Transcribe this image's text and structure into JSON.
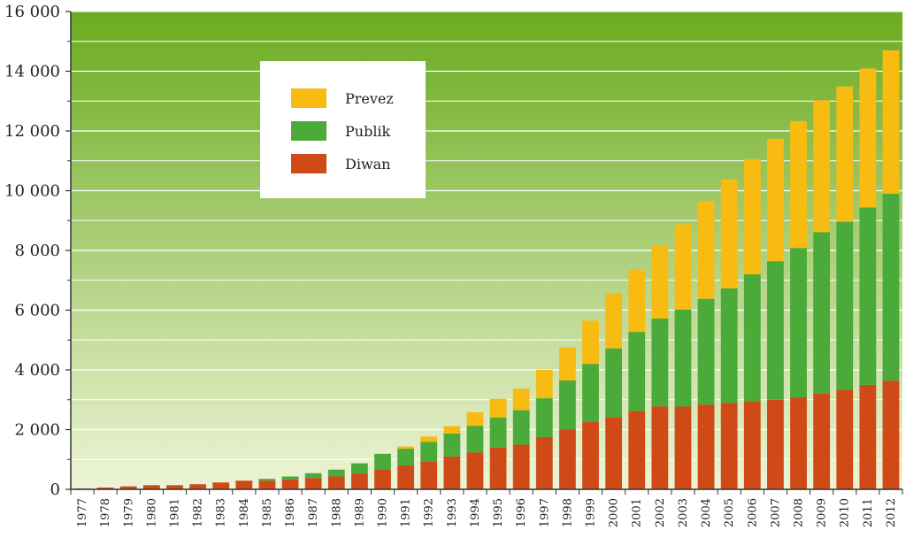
{
  "chart_data": {
    "type": "bar",
    "stacked": true,
    "categories": [
      "1977",
      "1978",
      "1979",
      "1980",
      "1981",
      "1982",
      "1983",
      "1984",
      "1985",
      "1986",
      "1987",
      "1988",
      "1989",
      "1990",
      "1991",
      "1992",
      "1993",
      "1994",
      "1995",
      "1996",
      "1997",
      "1998",
      "1999",
      "2000",
      "2001",
      "2002",
      "2003",
      "2004",
      "2005",
      "2006",
      "2007",
      "2008",
      "2009",
      "2010",
      "2011",
      "2012"
    ],
    "series": [
      {
        "name": "Diwan",
        "color": "#d04a18",
        "values": [
          30,
          60,
          100,
          140,
          140,
          170,
          230,
          290,
          290,
          330,
          380,
          430,
          530,
          670,
          800,
          940,
          1100,
          1230,
          1400,
          1500,
          1750,
          2000,
          2250,
          2420,
          2620,
          2780,
          2770,
          2840,
          2890,
          2950,
          3000,
          3080,
          3210,
          3340,
          3500,
          3640
        ]
      },
      {
        "name": "Publik",
        "color": "#4aaa3a",
        "values": [
          0,
          0,
          0,
          0,
          0,
          0,
          0,
          0,
          60,
          100,
          160,
          230,
          340,
          520,
          560,
          650,
          770,
          900,
          1000,
          1150,
          1300,
          1650,
          1950,
          2300,
          2650,
          2940,
          3250,
          3540,
          3840,
          4250,
          4640,
          5000,
          5400,
          5620,
          5940,
          6260
        ]
      },
      {
        "name": "Prevez",
        "color": "#f7bb12",
        "values": [
          0,
          0,
          0,
          0,
          0,
          0,
          0,
          0,
          0,
          0,
          0,
          0,
          0,
          0,
          80,
          180,
          250,
          450,
          630,
          720,
          950,
          1100,
          1450,
          1850,
          2100,
          2450,
          2850,
          3280,
          3650,
          3860,
          4100,
          4250,
          4420,
          4530,
          4650,
          4800
        ]
      }
    ],
    "legend_order": [
      "Prevez",
      "Publik",
      "Diwan"
    ],
    "legend_position": "top-left",
    "ylim": [
      0,
      16000
    ],
    "yticks": [
      {
        "value": 0,
        "label": "0"
      },
      {
        "value": 2000,
        "label": "2 000"
      },
      {
        "value": 4000,
        "label": "4 000"
      },
      {
        "value": 6000,
        "label": "6 000"
      },
      {
        "value": 8000,
        "label": "8 000"
      },
      {
        "value": 10000,
        "label": "10 000"
      },
      {
        "value": 12000,
        "label": "12 000"
      },
      {
        "value": 14000,
        "label": "14 000"
      },
      {
        "value": 16000,
        "label": "16 000"
      }
    ],
    "grid": true,
    "minor_gridlines": true,
    "background_gradient": [
      "#6aab1f",
      "#eef4d6"
    ],
    "gridline_color": "#ffffff",
    "title": "",
    "xlabel": "",
    "ylabel": ""
  }
}
